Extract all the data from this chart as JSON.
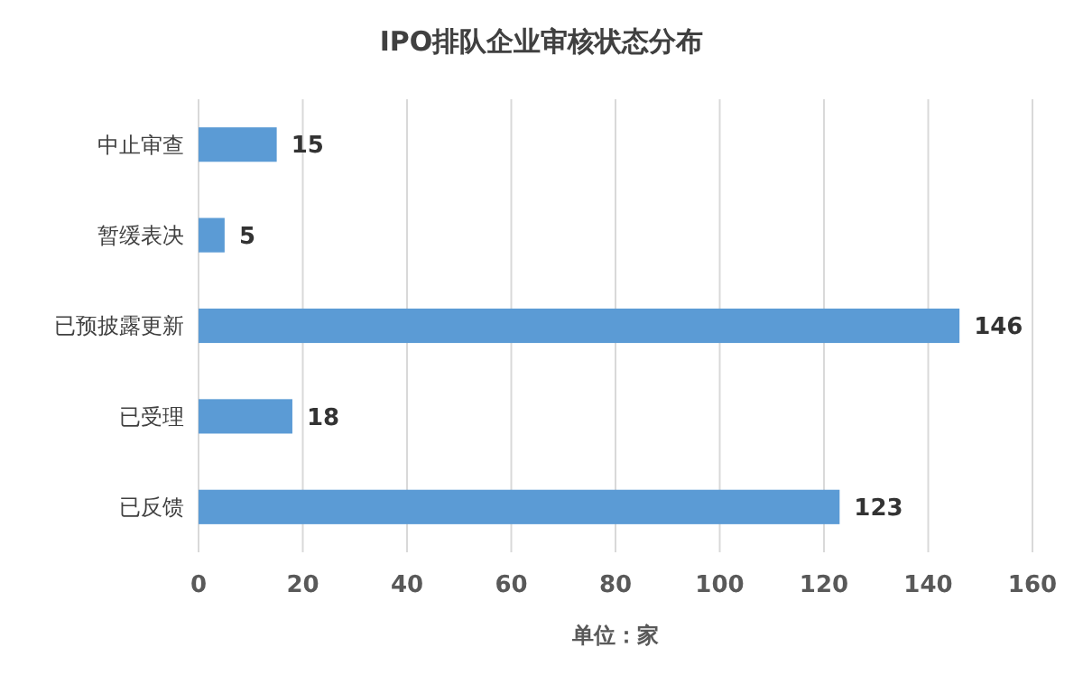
{
  "chart_data": {
    "type": "bar",
    "orientation": "horizontal",
    "title": "IPO排队企业审核状态分布",
    "xlabel": "单位：家",
    "categories": [
      "中止审查",
      "暂缓表决",
      "已预披露更新",
      "已受理",
      "已反馈"
    ],
    "values": [
      15,
      5,
      146,
      18,
      123
    ],
    "color": "#5b9bd5",
    "xlim": [
      0,
      160
    ],
    "xticks": [
      0,
      20,
      40,
      60,
      80,
      100,
      120,
      140,
      160
    ],
    "grid": "x",
    "data_labels": true
  }
}
